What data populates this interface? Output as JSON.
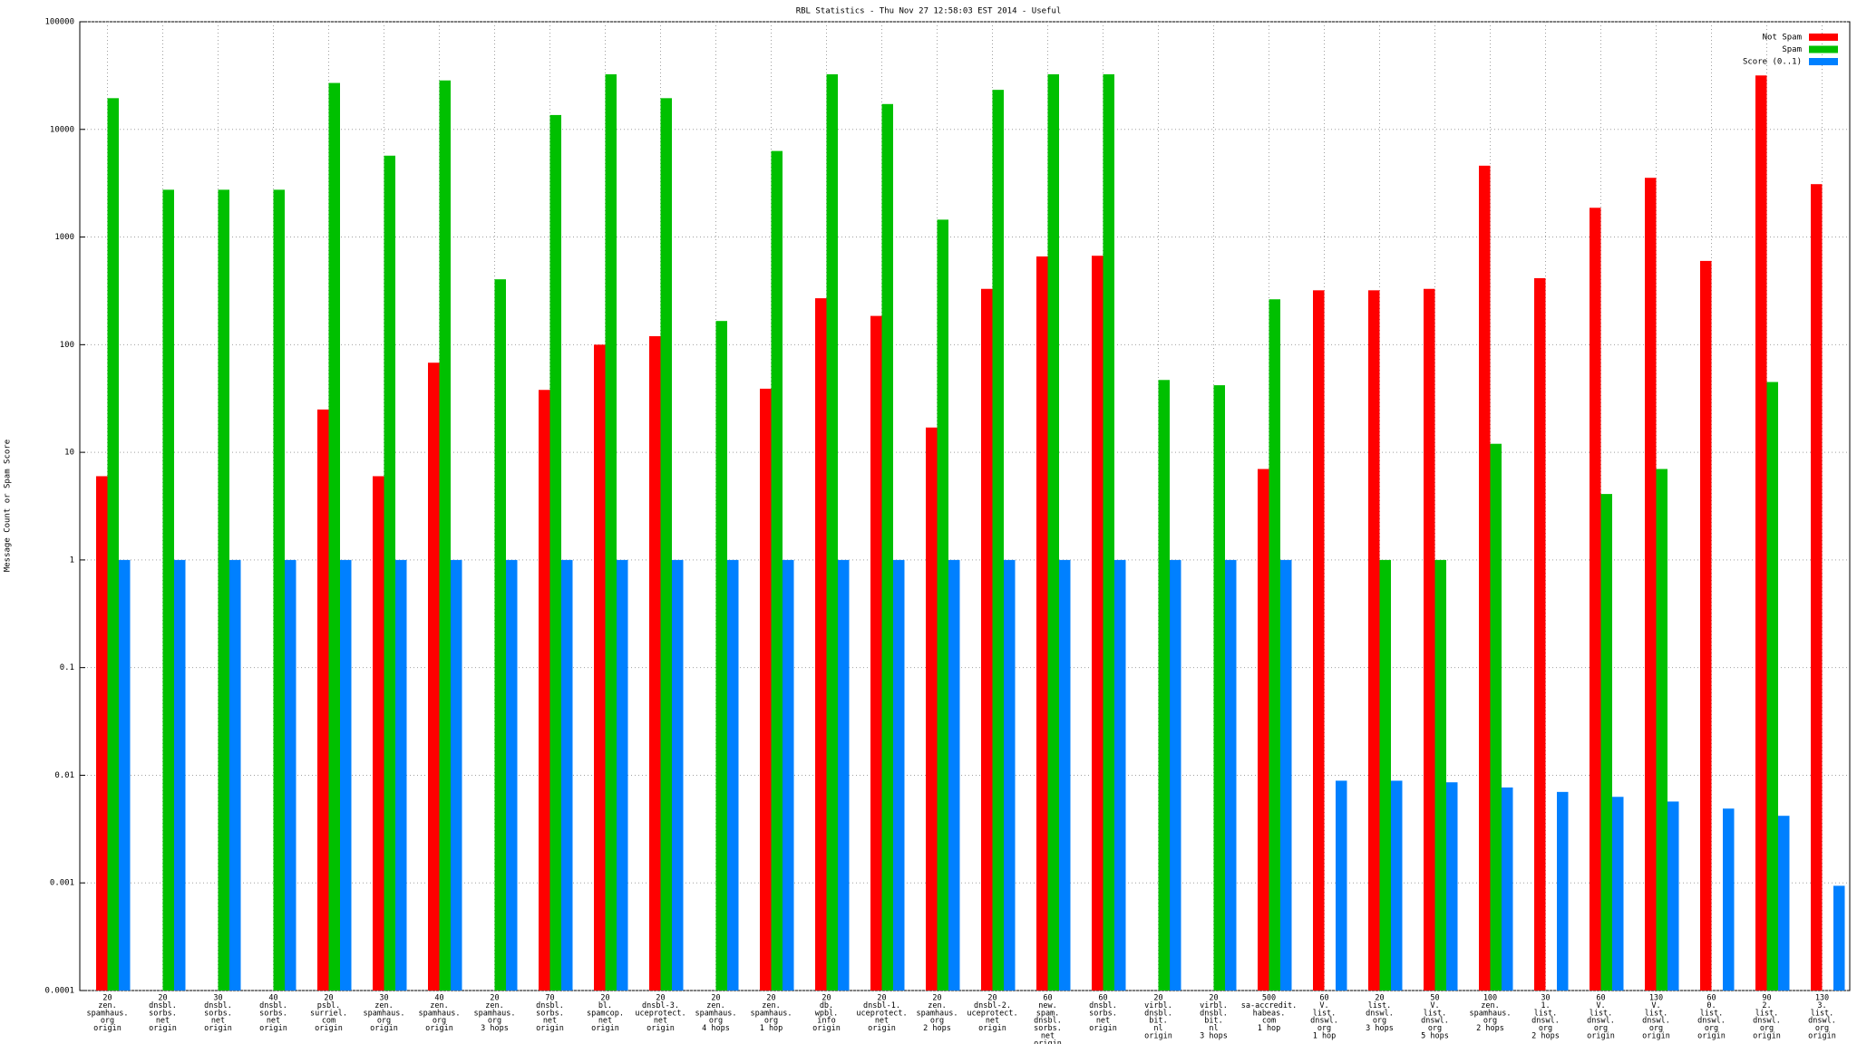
{
  "chart_data": {
    "type": "bar",
    "title": "RBL Statistics - Thu Nov 27 12:58:03 EST 2014 - Useful",
    "y_label": "Message Count or Spam Score",
    "categories": [
      [
        "20",
        "zen.",
        "spamhaus.",
        "org",
        "origin"
      ],
      [
        "20",
        "dnsbl.",
        "sorbs.",
        "net",
        "origin"
      ],
      [
        "30",
        "dnsbl.",
        "sorbs.",
        "net",
        "origin"
      ],
      [
        "40",
        "dnsbl.",
        "sorbs.",
        "net",
        "origin"
      ],
      [
        "20",
        "psbl.",
        "surriel.",
        "com",
        "origin"
      ],
      [
        "30",
        "zen.",
        "spamhaus.",
        "org",
        "origin"
      ],
      [
        "40",
        "zen.",
        "spamhaus.",
        "org",
        "origin"
      ],
      [
        "20",
        "zen.",
        "spamhaus.",
        "org",
        "3 hops"
      ],
      [
        "70",
        "dnsbl.",
        "sorbs.",
        "net",
        "origin"
      ],
      [
        "20",
        "bl.",
        "spamcop.",
        "net",
        "origin"
      ],
      [
        "20",
        "dnsbl-3.",
        "uceprotect.",
        "net",
        "origin"
      ],
      [
        "20",
        "zen.",
        "spamhaus.",
        "org",
        "4 hops"
      ],
      [
        "20",
        "zen.",
        "spamhaus.",
        "org",
        "1 hop"
      ],
      [
        "20",
        "db.",
        "wpbl.",
        "info",
        "origin"
      ],
      [
        "20",
        "dnsbl-1.",
        "uceprotect.",
        "net",
        "origin"
      ],
      [
        "20",
        "zen.",
        "spamhaus.",
        "org",
        "2 hops"
      ],
      [
        "20",
        "dnsbl-2.",
        "uceprotect.",
        "net",
        "origin"
      ],
      [
        "60",
        "new.",
        "spam.",
        "dnsbl.",
        "sorbs.",
        "net",
        "origin"
      ],
      [
        "60",
        "dnsbl.",
        "sorbs.",
        "net",
        "origin"
      ],
      [
        "20",
        "virbl.",
        "dnsbl.",
        "bit.",
        "nl",
        "origin"
      ],
      [
        "20",
        "virbl.",
        "dnsbl.",
        "bit.",
        "nl",
        "3 hops"
      ],
      [
        "500",
        "sa-accredit.",
        "habeas.",
        "com",
        "1 hop"
      ],
      [
        "60",
        "V.",
        "list.",
        "dnswl.",
        "org",
        "1 hop"
      ],
      [
        "20",
        "list.",
        "dnswl.",
        "org",
        "3 hops"
      ],
      [
        "50",
        "V.",
        "list.",
        "dnswl.",
        "org",
        "5 hops"
      ],
      [
        "100",
        "zen.",
        "spamhaus.",
        "org",
        "2 hops"
      ],
      [
        "30",
        "1.",
        "list.",
        "dnswl.",
        "org",
        "2 hops"
      ],
      [
        "60",
        "V.",
        "list.",
        "dnswl.",
        "org",
        "origin"
      ],
      [
        "130",
        "V.",
        "list.",
        "dnswl.",
        "org",
        "origin"
      ],
      [
        "60",
        "0.",
        "list.",
        "dnswl.",
        "org",
        "origin"
      ],
      [
        "90",
        "2.",
        "list.",
        "dnswl.",
        "org",
        "origin"
      ],
      [
        "130",
        "3.",
        "list.",
        "dnswl.",
        "org",
        "origin"
      ]
    ],
    "series": [
      {
        "name": "Not Spam",
        "color": "#ff0000",
        "values": [
          6,
          null,
          null,
          null,
          25,
          6,
          68,
          null,
          38,
          100,
          120,
          null,
          39,
          270,
          185,
          17,
          330,
          660,
          670,
          null,
          null,
          7,
          320,
          320,
          330,
          4600,
          415,
          1870,
          3550,
          600,
          31700,
          3100
        ]
      },
      {
        "name": "Spam",
        "color": "#00c000",
        "values": [
          19500,
          2750,
          2750,
          2750,
          27000,
          5700,
          28500,
          405,
          13600,
          32500,
          19500,
          166,
          6300,
          32500,
          17200,
          1450,
          23300,
          32500,
          32500,
          47,
          42,
          264,
          null,
          1,
          1,
          12,
          null,
          4.1,
          7,
          null,
          45,
          null
        ]
      },
      {
        "name": "Score (0..1)",
        "color": "#0080ff",
        "values": [
          1,
          1,
          1,
          1,
          1,
          1,
          1,
          1,
          1,
          1,
          1,
          1,
          1,
          1,
          1,
          1,
          1,
          1,
          1,
          1,
          1,
          1,
          0.0089,
          0.0089,
          0.0086,
          0.0077,
          0.007,
          0.0063,
          0.0057,
          0.0049,
          0.0042,
          0.00094
        ]
      }
    ],
    "ylim": [
      0.0001,
      100000
    ],
    "yticks": [
      0.0001,
      0.001,
      0.01,
      0.1,
      1,
      10,
      100,
      1000,
      10000,
      100000
    ],
    "log_scale": true,
    "grid": true,
    "legend_position": "top-right"
  }
}
